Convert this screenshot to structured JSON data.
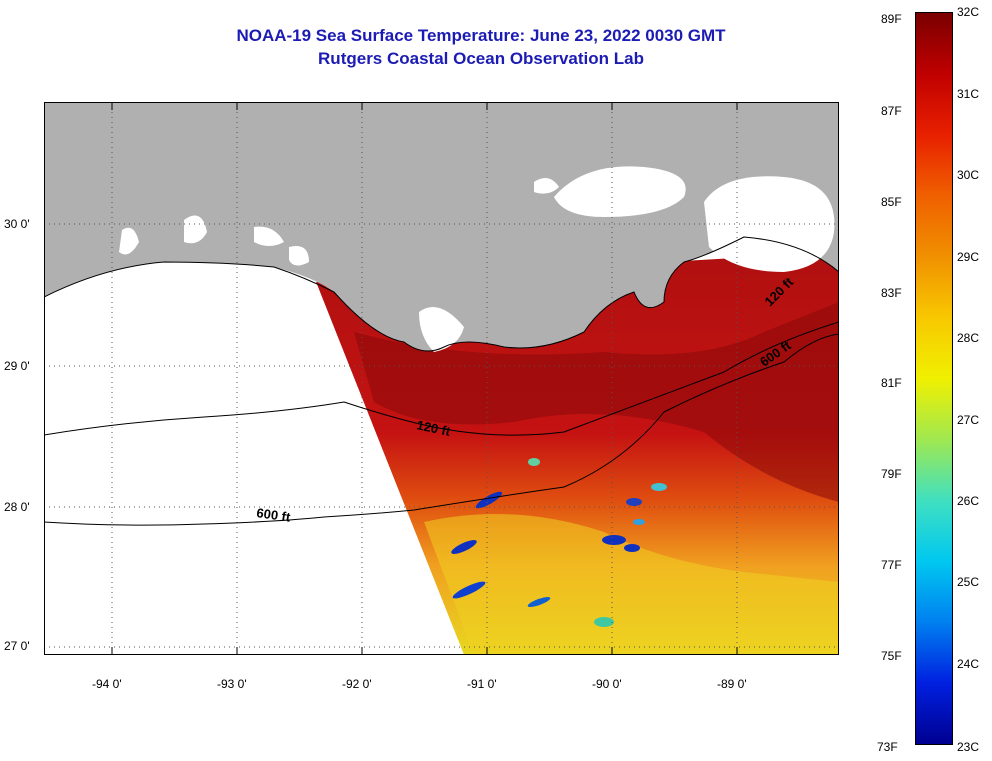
{
  "title": {
    "line1": "NOAA-19 Sea Surface Temperature:  June 23, 2022 0030 GMT",
    "line2": "Rutgers Coastal Ocean Observation Lab"
  },
  "map": {
    "lat_labels": [
      "30 0'",
      "29 0'",
      "28 0'",
      "27 0'"
    ],
    "lon_labels": [
      "-94 0'",
      "-93 0'",
      "-92 0'",
      "-91 0'",
      "-90 0'",
      "-89 0'"
    ],
    "contour_labels": [
      "120 ft",
      "120 ft",
      "600 ft",
      "600 ft"
    ],
    "colors": {
      "land": "#b0b0b0",
      "cloud": "#ffffff",
      "warm_water": "#c01010",
      "hot_water": "#8a0808"
    }
  },
  "colorbar": {
    "fahrenheit": [
      "89F",
      "87F",
      "85F",
      "83F",
      "81F",
      "79F",
      "77F",
      "75F",
      "73F"
    ],
    "celsius": [
      "32C",
      "31C",
      "30C",
      "29C",
      "28C",
      "27C",
      "26C",
      "25C",
      "24C",
      "23C"
    ],
    "gradient": [
      "#7a0000",
      "#c00000",
      "#e82000",
      "#f06000",
      "#f09000",
      "#f8c800",
      "#f0f000",
      "#a0e850",
      "#40e0c0",
      "#00c8f0",
      "#0080f0",
      "#0020e0",
      "#000090"
    ]
  }
}
